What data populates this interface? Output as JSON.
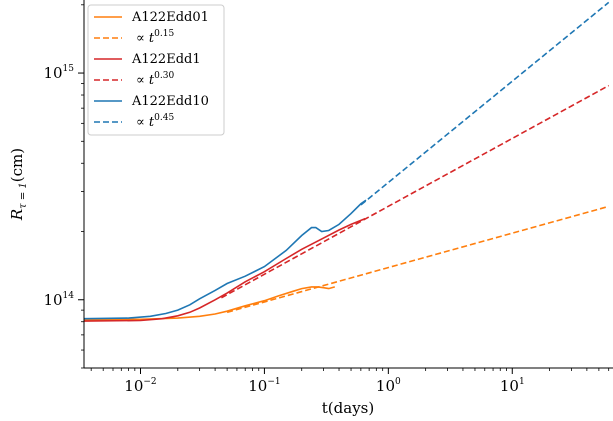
{
  "chart_data": {
    "type": "line",
    "xlabel": "t(days)",
    "ylabel_main": "R",
    "ylabel_sub": "τ = 1",
    "ylabel_unit": "(cm)",
    "xscale": "log",
    "yscale": "log",
    "xlim": [
      0.0035,
      65
    ],
    "ylim": [
      50000000000000,
      2100000000000000
    ],
    "x_ticks": [
      {
        "value": 0.01,
        "base": "10",
        "exp": "−2"
      },
      {
        "value": 0.1,
        "base": "10",
        "exp": "−1"
      },
      {
        "value": 1,
        "base": "10",
        "exp": "0"
      },
      {
        "value": 10,
        "base": "10",
        "exp": "1"
      }
    ],
    "y_ticks": [
      {
        "value": 100000000000000,
        "base": "10",
        "exp": "14"
      },
      {
        "value": 1000000000000000,
        "base": "10",
        "exp": "15"
      }
    ],
    "grid": false,
    "legend_position": "top-left",
    "series": [
      {
        "name": "A122Edd01",
        "color": "#ff7f0e",
        "style": "solid",
        "points": [
          [
            0.0035,
            81500000000000.0
          ],
          [
            0.01,
            82000000000000.0
          ],
          [
            0.02,
            83000000000000.0
          ],
          [
            0.03,
            84500000000000.0
          ],
          [
            0.04,
            86500000000000.0
          ],
          [
            0.05,
            89000000000000.0
          ],
          [
            0.07,
            94000000000000.0
          ],
          [
            0.1,
            99000000000000.0
          ],
          [
            0.13,
            104000000000000.0
          ],
          [
            0.17,
            109000000000000.0
          ],
          [
            0.2,
            112000000000000.0
          ],
          [
            0.24,
            114000000000000.0
          ],
          [
            0.27,
            114000000000000.0
          ],
          [
            0.3,
            113000000000000.0
          ],
          [
            0.33,
            112000000000000.0
          ],
          [
            0.37,
            114000000000000.0
          ]
        ]
      },
      {
        "name": "∝ t",
        "exponent": "0.15",
        "color": "#ff7f0e",
        "style": "dashed",
        "points": [
          [
            0.05,
            88000000000000.0
          ],
          [
            60,
            258000000000000.0
          ]
        ]
      },
      {
        "name": "A122Edd1",
        "color": "#d62728",
        "style": "solid",
        "points": [
          [
            0.0035,
            80500000000000.0
          ],
          [
            0.01,
            81000000000000.0
          ],
          [
            0.015,
            82500000000000.0
          ],
          [
            0.02,
            85000000000000.0
          ],
          [
            0.025,
            88000000000000.0
          ],
          [
            0.03,
            92000000000000.0
          ],
          [
            0.04,
            100000000000000.0
          ],
          [
            0.05,
            107000000000000.0
          ],
          [
            0.07,
            120000000000000.0
          ],
          [
            0.1,
            133000000000000.0
          ],
          [
            0.15,
            152000000000000.0
          ],
          [
            0.2,
            167000000000000.0
          ],
          [
            0.3,
            187000000000000.0
          ],
          [
            0.4,
            203000000000000.0
          ],
          [
            0.5,
            215000000000000.0
          ],
          [
            0.65,
            228000000000000.0
          ]
        ]
      },
      {
        "name": "∝ t",
        "exponent": "0.30",
        "color": "#d62728",
        "style": "dashed",
        "points": [
          [
            0.045,
            102000000000000.0
          ],
          [
            60,
            880000000000000.0
          ]
        ]
      },
      {
        "name": "A122Edd10",
        "color": "#1f77b4",
        "style": "solid",
        "points": [
          [
            0.0035,
            82500000000000.0
          ],
          [
            0.008,
            83000000000000.0
          ],
          [
            0.012,
            84500000000000.0
          ],
          [
            0.016,
            87000000000000.0
          ],
          [
            0.02,
            90000000000000.0
          ],
          [
            0.025,
            95000000000000.0
          ],
          [
            0.03,
            101000000000000.0
          ],
          [
            0.04,
            110000000000000.0
          ],
          [
            0.05,
            118000000000000.0
          ],
          [
            0.07,
            127000000000000.0
          ],
          [
            0.1,
            140000000000000.0
          ],
          [
            0.15,
            165000000000000.0
          ],
          [
            0.2,
            192000000000000.0
          ],
          [
            0.24,
            208000000000000.0
          ],
          [
            0.26,
            208000000000000.0
          ],
          [
            0.29,
            200000000000000.0
          ],
          [
            0.33,
            202000000000000.0
          ],
          [
            0.4,
            215000000000000.0
          ],
          [
            0.5,
            240000000000000.0
          ],
          [
            0.6,
            265000000000000.0
          ],
          [
            0.66,
            275000000000000.0
          ]
        ]
      },
      {
        "name": "∝ t",
        "exponent": "0.45",
        "color": "#1f77b4",
        "style": "dashed",
        "points": [
          [
            0.6,
            262000000000000.0
          ],
          [
            60,
            2050000000000000.0
          ]
        ]
      }
    ]
  }
}
